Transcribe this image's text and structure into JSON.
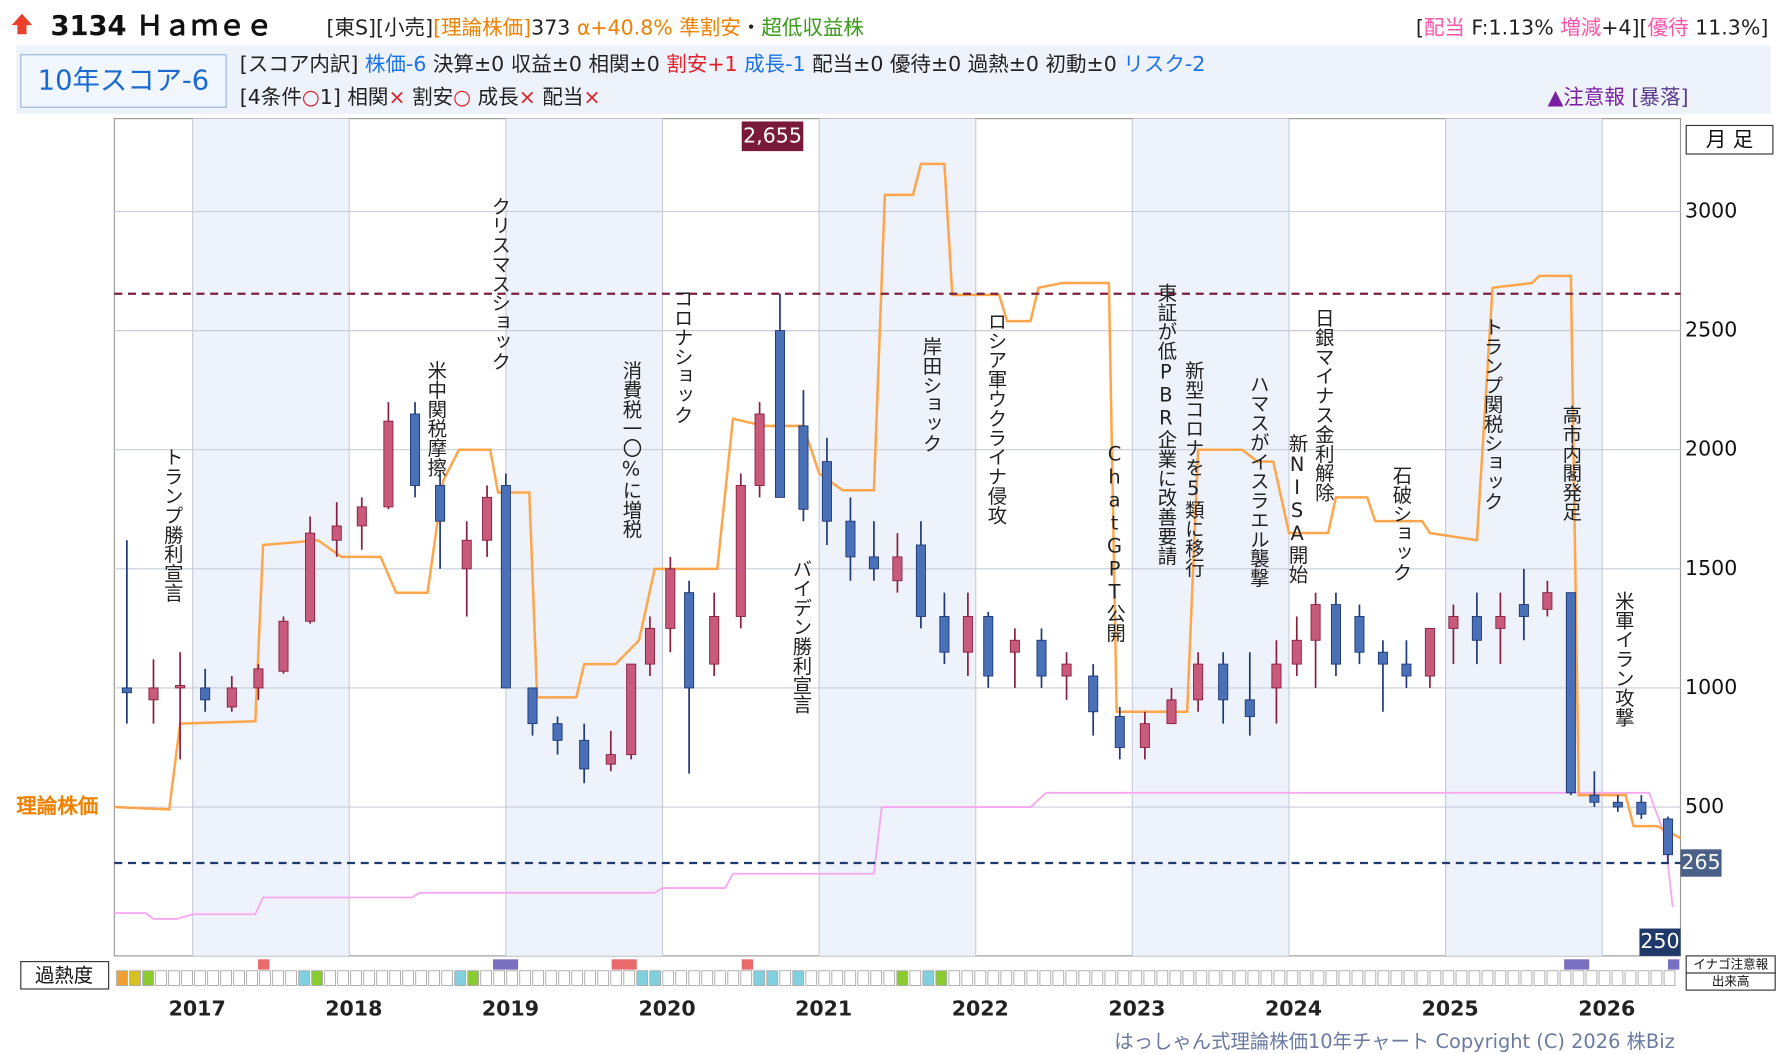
{
  "chart_data": {
    "type": "candlestick",
    "title": "3134 Ｈａｍｅｅ",
    "header_left": [
      {
        "text": "[東S][小売]",
        "color": "#222"
      },
      {
        "text": "[理論株価]",
        "color": "#f08000"
      },
      {
        "text": "373",
        "color": "#222"
      },
      {
        "text": " α+40.8%",
        "color": "#f08000"
      },
      {
        "text": " 準割安",
        "color": "#f08000"
      },
      {
        "text": "・",
        "color": "#222"
      },
      {
        "text": "超低収益株",
        "color": "#3a9a1a"
      }
    ],
    "header_right": [
      {
        "text": "[",
        "color": "#222"
      },
      {
        "text": "配当",
        "color": "#ff55aa"
      },
      {
        "text": " F:1.13% ",
        "color": "#222"
      },
      {
        "text": "増減",
        "color": "#ff55aa"
      },
      {
        "text": "+4][",
        "color": "#222"
      },
      {
        "text": "優待",
        "color": "#ff55aa"
      },
      {
        "text": " 11.3%]",
        "color": "#222"
      }
    ],
    "score": "10年スコア-6",
    "score_breakdown": [
      {
        "text": "[スコア内訳] ",
        "color": "#222"
      },
      {
        "text": "株価-6 ",
        "color": "#1a73e8"
      },
      {
        "text": "決算±0 収益±0 相関±0 ",
        "color": "#222"
      },
      {
        "text": "割安+1 ",
        "color": "#e0202a"
      },
      {
        "text": "成長-1 ",
        "color": "#1a73e8"
      },
      {
        "text": "配当±0 優待±0 過熱±0 初動±0 ",
        "color": "#222"
      },
      {
        "text": "リスク-2",
        "color": "#1a73e8"
      }
    ],
    "conditions": [
      {
        "text": "[4条件",
        "color": "#222"
      },
      {
        "text": "○",
        "color": "#e0202a"
      },
      {
        "text": "1] 相関",
        "color": "#222"
      },
      {
        "text": "×",
        "color": "#e0202a"
      },
      {
        "text": " 割安",
        "color": "#222"
      },
      {
        "text": "○",
        "color": "#e0202a"
      },
      {
        "text": " 成長",
        "color": "#222"
      },
      {
        "text": "×",
        "color": "#e0202a"
      },
      {
        "text": " 配当",
        "color": "#222"
      },
      {
        "text": "×",
        "color": "#e0202a"
      }
    ],
    "alert": [
      {
        "text": "▲注意報 ",
        "color": "#7a1fa2"
      },
      {
        "text": "[暴落]",
        "color": "#5a3a8a"
      }
    ],
    "period": "月 足",
    "xlim": [
      2016.5,
      2026.5
    ],
    "xticks": [
      2017,
      2018,
      2019,
      2020,
      2021,
      2022,
      2023,
      2024,
      2025,
      2026
    ],
    "ylim": [
      -125,
      3390
    ],
    "yticks": [
      500,
      1000,
      1500,
      2000,
      2500,
      3000
    ],
    "grid": true,
    "up_color": "#c85a7c",
    "down_color": "#4a70b8",
    "candles": [
      {
        "x": 2016.58,
        "open": 1000,
        "high": 1620,
        "low": 850,
        "close": 980
      },
      {
        "x": 2016.75,
        "open": 950,
        "high": 1120,
        "low": 850,
        "close": 1000
      },
      {
        "x": 2016.92,
        "open": 1000,
        "high": 1150,
        "low": 700,
        "close": 1010
      },
      {
        "x": 2017.08,
        "open": 1000,
        "high": 1080,
        "low": 900,
        "close": 950
      },
      {
        "x": 2017.25,
        "open": 920,
        "high": 1050,
        "low": 900,
        "close": 1000
      },
      {
        "x": 2017.42,
        "open": 1000,
        "high": 1100,
        "low": 950,
        "close": 1080
      },
      {
        "x": 2017.58,
        "open": 1070,
        "high": 1300,
        "low": 1060,
        "close": 1280
      },
      {
        "x": 2017.75,
        "open": 1280,
        "high": 1720,
        "low": 1270,
        "close": 1650
      },
      {
        "x": 2017.92,
        "open": 1620,
        "high": 1780,
        "low": 1550,
        "close": 1680
      },
      {
        "x": 2018.08,
        "open": 1680,
        "high": 1800,
        "low": 1580,
        "close": 1760
      },
      {
        "x": 2018.25,
        "open": 1760,
        "high": 2200,
        "low": 1750,
        "close": 2120
      },
      {
        "x": 2018.42,
        "open": 2150,
        "high": 2200,
        "low": 1800,
        "close": 1850
      },
      {
        "x": 2018.58,
        "open": 1850,
        "high": 1900,
        "low": 1500,
        "close": 1700
      },
      {
        "x": 2018.75,
        "open": 1500,
        "high": 1700,
        "low": 1300,
        "close": 1620
      },
      {
        "x": 2018.88,
        "open": 1620,
        "high": 1850,
        "low": 1550,
        "close": 1800
      },
      {
        "x": 2019.0,
        "open": 1850,
        "high": 1900,
        "low": 1000,
        "close": 1000
      },
      {
        "x": 2019.17,
        "open": 1000,
        "high": 1000,
        "low": 800,
        "close": 850
      },
      {
        "x": 2019.33,
        "open": 850,
        "high": 880,
        "low": 720,
        "close": 780
      },
      {
        "x": 2019.5,
        "open": 780,
        "high": 850,
        "low": 600,
        "close": 660
      },
      {
        "x": 2019.67,
        "open": 680,
        "high": 820,
        "low": 650,
        "close": 720
      },
      {
        "x": 2019.8,
        "open": 720,
        "high": 1100,
        "low": 700,
        "close": 1100
      },
      {
        "x": 2019.92,
        "open": 1100,
        "high": 1300,
        "low": 1050,
        "close": 1250
      },
      {
        "x": 2020.05,
        "open": 1250,
        "high": 1550,
        "low": 1150,
        "close": 1500
      },
      {
        "x": 2020.17,
        "open": 1400,
        "high": 1450,
        "low": 640,
        "close": 1000
      },
      {
        "x": 2020.33,
        "open": 1100,
        "high": 1400,
        "low": 1050,
        "close": 1300
      },
      {
        "x": 2020.5,
        "open": 1300,
        "high": 1900,
        "low": 1250,
        "close": 1850
      },
      {
        "x": 2020.62,
        "open": 1850,
        "high": 2200,
        "low": 1800,
        "close": 2150
      },
      {
        "x": 2020.75,
        "open": 2500,
        "high": 2655,
        "low": 1800,
        "close": 1800
      },
      {
        "x": 2020.9,
        "open": 2100,
        "high": 2250,
        "low": 1700,
        "close": 1750
      },
      {
        "x": 2021.05,
        "open": 1950,
        "high": 2050,
        "low": 1600,
        "close": 1700
      },
      {
        "x": 2021.2,
        "open": 1700,
        "high": 1800,
        "low": 1450,
        "close": 1550
      },
      {
        "x": 2021.35,
        "open": 1550,
        "high": 1700,
        "low": 1450,
        "close": 1500
      },
      {
        "x": 2021.5,
        "open": 1450,
        "high": 1650,
        "low": 1400,
        "close": 1550
      },
      {
        "x": 2021.65,
        "open": 1600,
        "high": 1700,
        "low": 1250,
        "close": 1300
      },
      {
        "x": 2021.8,
        "open": 1300,
        "high": 1400,
        "low": 1100,
        "close": 1150
      },
      {
        "x": 2021.95,
        "open": 1150,
        "high": 1400,
        "low": 1050,
        "close": 1300
      },
      {
        "x": 2022.08,
        "open": 1300,
        "high": 1320,
        "low": 1000,
        "close": 1050
      },
      {
        "x": 2022.25,
        "open": 1150,
        "high": 1250,
        "low": 1000,
        "close": 1200
      },
      {
        "x": 2022.42,
        "open": 1200,
        "high": 1250,
        "low": 1000,
        "close": 1050
      },
      {
        "x": 2022.58,
        "open": 1050,
        "high": 1150,
        "low": 950,
        "close": 1100
      },
      {
        "x": 2022.75,
        "open": 1050,
        "high": 1100,
        "low": 800,
        "close": 900
      },
      {
        "x": 2022.92,
        "open": 880,
        "high": 920,
        "low": 700,
        "close": 750
      },
      {
        "x": 2023.08,
        "open": 750,
        "high": 900,
        "low": 700,
        "close": 850
      },
      {
        "x": 2023.25,
        "open": 850,
        "high": 1000,
        "low": 850,
        "close": 950
      },
      {
        "x": 2023.42,
        "open": 950,
        "high": 1150,
        "low": 900,
        "close": 1100
      },
      {
        "x": 2023.58,
        "open": 1100,
        "high": 1150,
        "low": 850,
        "close": 950
      },
      {
        "x": 2023.75,
        "open": 950,
        "high": 1150,
        "low": 800,
        "close": 880
      },
      {
        "x": 2023.92,
        "open": 1000,
        "high": 1200,
        "low": 850,
        "close": 1100
      },
      {
        "x": 2024.05,
        "open": 1100,
        "high": 1300,
        "low": 1050,
        "close": 1200
      },
      {
        "x": 2024.17,
        "open": 1200,
        "high": 1400,
        "low": 1000,
        "close": 1350
      },
      {
        "x": 2024.3,
        "open": 1350,
        "high": 1400,
        "low": 1050,
        "close": 1100
      },
      {
        "x": 2024.45,
        "open": 1300,
        "high": 1350,
        "low": 1100,
        "close": 1150
      },
      {
        "x": 2024.6,
        "open": 1150,
        "high": 1200,
        "low": 900,
        "close": 1100
      },
      {
        "x": 2024.75,
        "open": 1100,
        "high": 1200,
        "low": 1000,
        "close": 1050
      },
      {
        "x": 2024.9,
        "open": 1050,
        "high": 1250,
        "low": 1000,
        "close": 1250
      },
      {
        "x": 2025.05,
        "open": 1250,
        "high": 1350,
        "low": 1100,
        "close": 1300
      },
      {
        "x": 2025.2,
        "open": 1300,
        "high": 1400,
        "low": 1100,
        "close": 1200
      },
      {
        "x": 2025.35,
        "open": 1250,
        "high": 1400,
        "low": 1100,
        "close": 1300
      },
      {
        "x": 2025.5,
        "open": 1350,
        "high": 1500,
        "low": 1200,
        "close": 1300
      },
      {
        "x": 2025.65,
        "open": 1330,
        "high": 1450,
        "low": 1300,
        "close": 1400
      },
      {
        "x": 2025.8,
        "open": 1400,
        "high": 1400,
        "low": 550,
        "close": 560
      },
      {
        "x": 2025.95,
        "open": 550,
        "high": 650,
        "low": 500,
        "close": 520
      },
      {
        "x": 2026.1,
        "open": 520,
        "high": 550,
        "low": 480,
        "close": 500
      },
      {
        "x": 2026.25,
        "open": 520,
        "high": 550,
        "low": 450,
        "close": 470
      },
      {
        "x": 2026.42,
        "open": 450,
        "high": 460,
        "low": 265,
        "close": 300
      }
    ],
    "series": [
      {
        "name": "理論株価",
        "color": "#ffa64d",
        "x": [
          2016.5,
          2016.85,
          2016.92,
          2017.4,
          2017.45,
          2017.8,
          2017.95,
          2018.2,
          2018.3,
          2018.5,
          2018.6,
          2018.7,
          2018.9,
          2018.95,
          2019.15,
          2019.2,
          2019.45,
          2019.5,
          2019.7,
          2019.85,
          2019.95,
          2020.35,
          2020.45,
          2020.65,
          2020.9,
          2021.0,
          2021.15,
          2021.35,
          2021.42,
          2021.6,
          2021.65,
          2021.8,
          2021.85,
          2022.15,
          2022.2,
          2022.35,
          2022.4,
          2022.55,
          2022.85,
          2022.9,
          2023.35,
          2023.42,
          2023.7,
          2023.8,
          2023.9,
          2024.0,
          2024.25,
          2024.3,
          2024.5,
          2024.55,
          2024.85,
          2024.9,
          2025.2,
          2025.3,
          2025.55,
          2025.6,
          2025.8,
          2025.85,
          2026.15,
          2026.2,
          2026.35,
          2026.5
        ],
        "values": [
          500,
          490,
          850,
          860,
          1600,
          1620,
          1550,
          1550,
          1400,
          1400,
          1870,
          2000,
          2000,
          1820,
          1820,
          960,
          960,
          1100,
          1100,
          1200,
          1500,
          1500,
          2130,
          2100,
          2100,
          1900,
          1830,
          1830,
          3070,
          3070,
          3200,
          3200,
          2650,
          2650,
          2540,
          2540,
          2680,
          2700,
          2700,
          900,
          900,
          2000,
          2000,
          1950,
          1950,
          1650,
          1650,
          1800,
          1800,
          1700,
          1700,
          1650,
          1620,
          2680,
          2700,
          2730,
          2730,
          550,
          550,
          420,
          420,
          370
        ]
      },
      {
        "color": "#f7a8f0",
        "x": [
          2016.5,
          2016.7,
          2016.75,
          2016.9,
          2017.0,
          2017.4,
          2017.45,
          2018.4,
          2018.45,
          2019.95,
          2020.0,
          2020.4,
          2020.45,
          2021.35,
          2021.4,
          2022.35,
          2022.45,
          2026.3,
          2026.4,
          2026.45
        ],
        "values": [
          55,
          55,
          30,
          30,
          50,
          50,
          120,
          120,
          140,
          140,
          160,
          160,
          220,
          220,
          500,
          500,
          560,
          560,
          380,
          80
        ]
      }
    ],
    "high_line": {
      "value": 2655,
      "label": "2,655"
    },
    "low_line": {
      "value": 265,
      "label": "265"
    },
    "corner_value": 250,
    "annotations": [
      "トランプ勝利宣言",
      "米中関税摩擦",
      "クリスマスショック",
      "消費税一〇%に増税",
      "コロナショック",
      "バイデン勝利宣言",
      "岸田ショック",
      "ロシア軍ウクライナ侵攻",
      "ChatGPT公開",
      "東証が低PBR企業に改善要請",
      "新型コロナを5類に移行",
      "ハマスがイスラエル襲撃",
      "新NISA開始",
      "日銀マイナス金利解除",
      "石破ショック",
      "トランプ関税ショック",
      "高市内閣発足",
      "米軍イラン攻撃"
    ],
    "heat_label": "過熱度",
    "inago_label": "イナゴ注意報",
    "volume_label": "出来高",
    "footer": "はっしゃん式理論株価10年チャート Copyright (C) 2026 株Biz"
  }
}
